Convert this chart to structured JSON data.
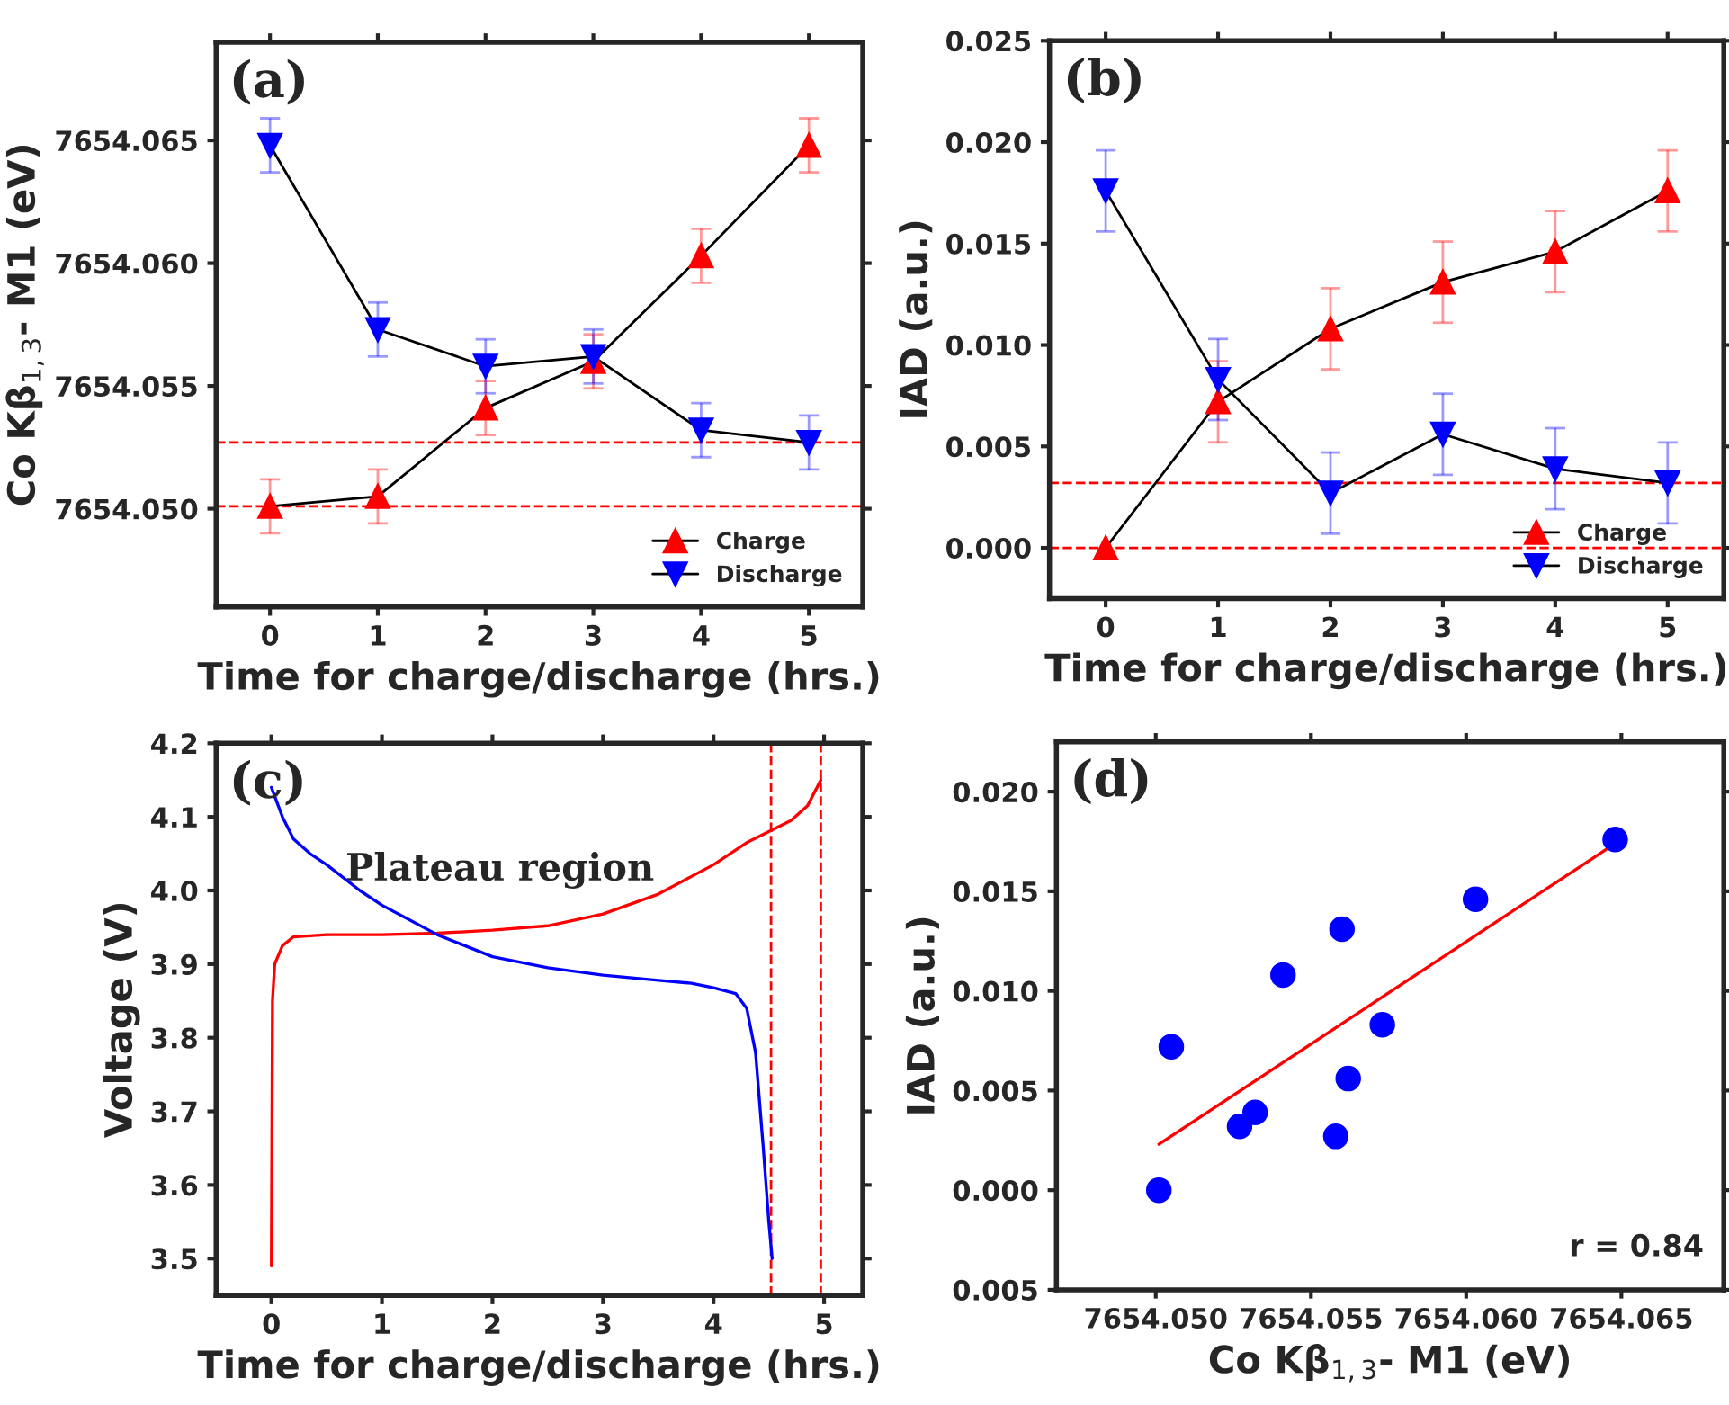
{
  "chart_data": [
    {
      "type": "line",
      "xlabel": "Time for charge/discharge (hrs.)",
      "ylabel": "Co Kβ$_{1,3}$- M1 (eV)",
      "annotations": [
        "(a)"
      ],
      "x": [
        0,
        1,
        2,
        3,
        4,
        5
      ],
      "xlim": [
        -0.5,
        5.5
      ],
      "xticks": [
        0,
        1,
        2,
        3,
        4,
        5
      ],
      "ylim": [
        7654.046,
        7654.069
      ],
      "yticks": [
        {
          "value": 7654.05,
          "label": "7654.050"
        },
        {
          "value": 7654.055,
          "label": "7654.055"
        },
        {
          "value": 7654.06,
          "label": "7654.060"
        },
        {
          "value": 7654.065,
          "label": "7654.065"
        }
      ],
      "legend": "bottom right",
      "grid": false,
      "series": [
        {
          "name": "Charge",
          "color": "#ff0000",
          "marker": "triangle",
          "values": [
            7654.0501,
            7654.0505,
            7654.0541,
            7654.056,
            7654.0603,
            7654.0648
          ],
          "errors": [
            0.0011,
            0.0011,
            0.0011,
            0.0011,
            0.0011,
            0.0011
          ]
        },
        {
          "name": "Discharge",
          "color": "#0000ff",
          "marker": "triangle_down",
          "values": [
            7654.0648,
            7654.0573,
            7654.0558,
            7654.0562,
            7654.0532,
            7654.0527
          ],
          "errors": [
            0.0011,
            0.0011,
            0.0011,
            0.0011,
            0.0011,
            0.0011
          ]
        }
      ],
      "ref_lines": [
        {
          "axis": "y",
          "value": 7654.0527,
          "color": "#ff0000",
          "line_style": "dashed"
        },
        {
          "axis": "y",
          "value": 7654.0501,
          "color": "#ff0000",
          "line_style": "dashed"
        }
      ]
    },
    {
      "type": "line",
      "xlabel": "Time for charge/discharge (hrs.)",
      "ylabel": "IAD (a.u.)",
      "annotations": [
        "(b)"
      ],
      "x": [
        0,
        1,
        2,
        3,
        4,
        5
      ],
      "xlim": [
        -0.5,
        5.5
      ],
      "xticks": [
        0,
        1,
        2,
        3,
        4,
        5
      ],
      "ylim": [
        -0.0025,
        0.025
      ],
      "yticks": [
        {
          "value": 0,
          "label": "0.000"
        },
        {
          "value": 0.005,
          "label": "0.005"
        },
        {
          "value": 0.01,
          "label": "0.010"
        },
        {
          "value": 0.015,
          "label": "0.015"
        },
        {
          "value": 0.02,
          "label": "0.020"
        },
        {
          "value": 0.025,
          "label": "0.025"
        }
      ],
      "legend": "bottom right",
      "grid": false,
      "series": [
        {
          "name": "Charge",
          "color": "#ff0000",
          "marker": "triangle",
          "values": [
            0,
            0.0072,
            0.0108,
            0.0131,
            0.0146,
            0.0176
          ],
          "errors": [
            null,
            0.002,
            0.002,
            0.002,
            0.002,
            0.002
          ]
        },
        {
          "name": "Discharge",
          "color": "#0000ff",
          "marker": "triangle_down",
          "values": [
            0.0176,
            0.0083,
            0.0027,
            0.0056,
            0.0039,
            0.0032
          ],
          "errors": [
            0.002,
            0.002,
            0.002,
            0.002,
            0.002,
            0.002
          ]
        }
      ],
      "ref_lines": [
        {
          "axis": "y",
          "value": 0.0032,
          "color": "#ff0000",
          "line_style": "dashed"
        },
        {
          "axis": "y",
          "value": 0,
          "color": "#ff0000",
          "line_style": "dashed"
        }
      ]
    },
    {
      "type": "line",
      "xlabel": "Time for charge/discharge (hrs.)",
      "ylabel": "Voltage (V)",
      "annotations": [
        "(c)",
        "Plateau region"
      ],
      "xlim": [
        -0.5,
        5.35
      ],
      "xticks": [
        0,
        1,
        2,
        3,
        4,
        5
      ],
      "ylim": [
        3.45,
        4.2
      ],
      "yticks": [
        3.5,
        3.6,
        3.7,
        3.8,
        3.9,
        {
          "value": 4,
          "label": "4.0"
        },
        4.1,
        4.2
      ],
      "grid": false,
      "marker": "none",
      "line_style": "solid",
      "series": [
        {
          "color": "#ff0000",
          "x": [
            0,
            0.01,
            0.03,
            0.1,
            0.2,
            0.5,
            1.0,
            1.5,
            2.0,
            2.5,
            3.0,
            3.5,
            4.0,
            4.3,
            4.5,
            4.7,
            4.85,
            4.97
          ],
          "values": [
            3.49,
            3.85,
            3.9,
            3.925,
            3.937,
            3.94,
            3.94,
            3.942,
            3.946,
            3.952,
            3.968,
            3.995,
            4.035,
            4.065,
            4.08,
            4.095,
            4.115,
            4.15
          ]
        },
        {
          "color": "#0000ff",
          "x": [
            0,
            0.1,
            0.2,
            0.35,
            0.5,
            0.8,
            1.0,
            1.5,
            2.0,
            2.5,
            3.0,
            3.5,
            3.8,
            4.0,
            4.2,
            4.3,
            4.38,
            4.45,
            4.5,
            4.53
          ],
          "values": [
            4.14,
            4.1,
            4.07,
            4.05,
            4.035,
            4.0,
            3.98,
            3.94,
            3.91,
            3.895,
            3.885,
            3.878,
            3.874,
            3.868,
            3.86,
            3.84,
            3.78,
            3.65,
            3.55,
            3.5
          ]
        }
      ],
      "ref_lines": [
        {
          "axis": "x",
          "value": 4.52,
          "color": "#ff0000",
          "line_style": "dashed"
        },
        {
          "axis": "x",
          "value": 4.97,
          "color": "#ff0000",
          "line_style": "dashed"
        }
      ]
    },
    {
      "type": "scatter",
      "xlabel": "Co Kβ$_{1,3}$- M1 (eV)",
      "ylabel": "IAD (a.u.)",
      "annotations": [
        "(d)",
        "r = 0.84"
      ],
      "xlim": [
        7654.0468,
        7654.0683
      ],
      "xticks": [
        {
          "value": 7654.05,
          "label": "7654.050"
        },
        {
          "value": 7654.055,
          "label": "7654.055"
        },
        {
          "value": 7654.06,
          "label": "7654.060"
        },
        {
          "value": 7654.065,
          "label": "7654.065"
        }
      ],
      "ylim": [
        -0.005,
        0.0225
      ],
      "yticks": [
        {
          "value": -0.005,
          "label": "0.005"
        },
        {
          "value": 0,
          "label": "0.000"
        },
        {
          "value": 0.005,
          "label": "0.005"
        },
        {
          "value": 0.01,
          "label": "0.010"
        },
        {
          "value": 0.015,
          "label": "0.015"
        },
        {
          "value": 0.02,
          "label": "0.020"
        }
      ],
      "grid": false,
      "marker": "circle",
      "series": [
        {
          "color": "#0000ff",
          "x": [
            7654.0501,
            7654.0505,
            7654.0541,
            7654.056,
            7654.0603,
            7654.0648,
            7654.0573,
            7654.0558,
            7654.0562,
            7654.0532,
            7654.0527
          ],
          "values": [
            0,
            0.0072,
            0.0108,
            0.0131,
            0.0146,
            0.0176,
            0.0083,
            0.0027,
            0.0056,
            0.0039,
            0.0032
          ]
        },
        {
          "type": "line",
          "marker": "none",
          "color": "#ff0000",
          "x": [
            7654.0501,
            7654.0648
          ],
          "values": [
            0.0023,
            0.0174
          ]
        }
      ]
    }
  ]
}
